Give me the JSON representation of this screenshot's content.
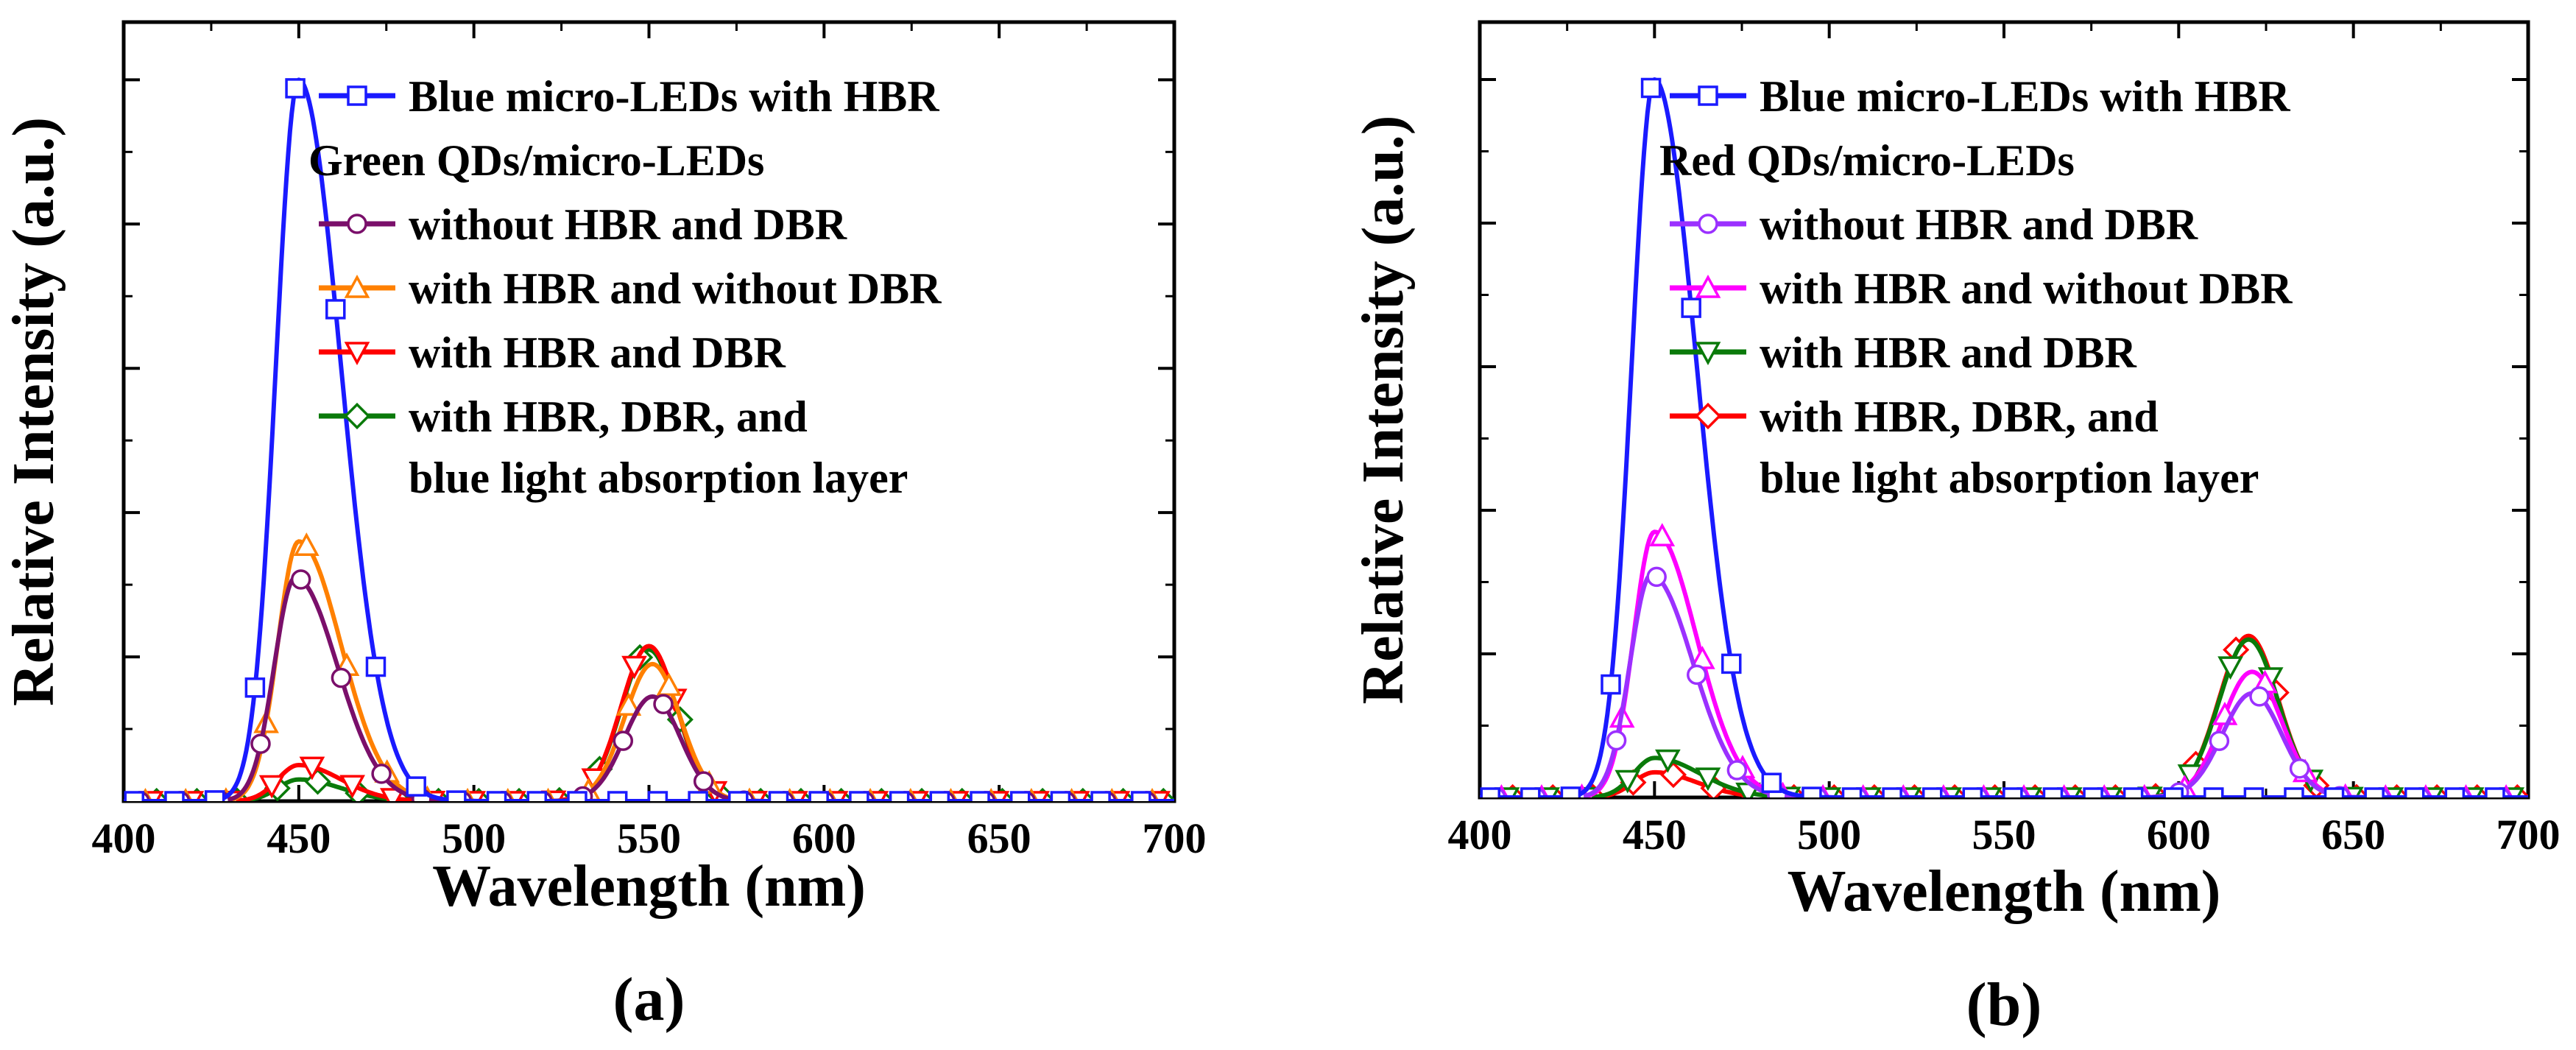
{
  "chart_data": [
    {
      "type": "line",
      "panel_label": "(a)",
      "xlabel": "Wavelength (nm)",
      "ylabel": "Relative Intensity (a.u.)",
      "xlim": [
        400,
        700
      ],
      "ylim": [
        0,
        1.08
      ],
      "xticks": [
        400,
        450,
        500,
        550,
        600,
        650,
        700
      ],
      "legend": {
        "placement": "top-right",
        "group_heading": "Green QDs/micro-LEDs",
        "group_heading_after": 0,
        "tail_note": "blue light absorption layer"
      },
      "series": [
        {
          "name": "Blue micro-LEDs with HBR",
          "color": "#1a1aff",
          "marker": "square",
          "peaks": [
            {
              "center": 450,
              "amp": 1.0,
              "left_width": 6.5,
              "right_width": 12
            }
          ]
        },
        {
          "name": "without HBR and  DBR",
          "color": "#7a0f6a",
          "marker": "circle",
          "peaks": [
            {
              "center": 449,
              "amp": 0.31,
              "left_width": 6,
              "right_width": 12
            },
            {
              "center": 551,
              "amp": 0.145,
              "left_width": 8,
              "right_width": 8
            }
          ]
        },
        {
          "name": "with HBR and without DBR",
          "color": "#ff8000",
          "marker": "triangle-up",
          "peaks": [
            {
              "center": 450,
              "amp": 0.36,
              "left_width": 6,
              "right_width": 12
            },
            {
              "center": 551,
              "amp": 0.19,
              "left_width": 8,
              "right_width": 8
            }
          ]
        },
        {
          "name": "with HBR and DBR",
          "color": "#ff0000",
          "marker": "triangle-down",
          "peaks": [
            {
              "center": 450,
              "amp": 0.05,
              "left_width": 6,
              "right_width": 12
            },
            {
              "center": 550,
              "amp": 0.215,
              "left_width": 8,
              "right_width": 8
            }
          ]
        },
        {
          "name": "with HBR, DBR, and",
          "color": "#0a7a0a",
          "marker": "diamond",
          "peaks": [
            {
              "center": 450,
              "amp": 0.03,
              "left_width": 6,
              "right_width": 12
            },
            {
              "center": 550,
              "amp": 0.21,
              "left_width": 8,
              "right_width": 8
            }
          ]
        }
      ]
    },
    {
      "type": "line",
      "panel_label": "(b)",
      "xlabel": "Wavelength (nm)",
      "ylabel": "Relative Intensity (a.u.)",
      "xlim": [
        400,
        700
      ],
      "ylim": [
        0,
        1.08
      ],
      "xticks": [
        400,
        450,
        500,
        550,
        600,
        650,
        700
      ],
      "legend": {
        "placement": "top-right",
        "group_heading": "Red QDs/micro-LEDs",
        "group_heading_after": 0,
        "tail_note": "blue light absorption layer"
      },
      "series": [
        {
          "name": "Blue micro-LEDs with HBR",
          "color": "#1a1aff",
          "marker": "square",
          "peaks": [
            {
              "center": 450,
              "amp": 1.0,
              "left_width": 6.5,
              "right_width": 12
            }
          ]
        },
        {
          "name": "without HBR and DBR",
          "color": "#9b30ff",
          "marker": "circle",
          "peaks": [
            {
              "center": 449,
              "amp": 0.31,
              "left_width": 6,
              "right_width": 12
            },
            {
              "center": 621,
              "amp": 0.145,
              "left_width": 8.5,
              "right_width": 8.5
            }
          ]
        },
        {
          "name": "with HBR and without DBR",
          "color": "#ff00ff",
          "marker": "triangle-up",
          "peaks": [
            {
              "center": 450,
              "amp": 0.37,
              "left_width": 6,
              "right_width": 12
            },
            {
              "center": 621,
              "amp": 0.175,
              "left_width": 8.5,
              "right_width": 8.5
            }
          ]
        },
        {
          "name": "with HBR and DBR",
          "color": "#0a7a0a",
          "marker": "triangle-down",
          "peaks": [
            {
              "center": 450,
              "amp": 0.055,
              "left_width": 6,
              "right_width": 13
            },
            {
              "center": 620,
              "amp": 0.22,
              "left_width": 8.5,
              "right_width": 8.5
            }
          ]
        },
        {
          "name": "with HBR, DBR, and",
          "color": "#ff0000",
          "marker": "diamond",
          "peaks": [
            {
              "center": 450,
              "amp": 0.035,
              "left_width": 6,
              "right_width": 12
            },
            {
              "center": 620,
              "amp": 0.225,
              "left_width": 8.5,
              "right_width": 8.5
            }
          ]
        }
      ]
    }
  ]
}
